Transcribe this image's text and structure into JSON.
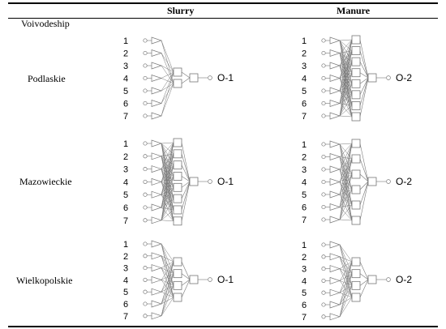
{
  "table": {
    "header": {
      "col_slurry": "Slurry",
      "col_manure": "Manure",
      "row_header": "Voivodeship"
    },
    "rows": [
      {
        "voivodeship": "Podlaskie",
        "slurry": {
          "inputs": [
            "1",
            "2",
            "3",
            "4",
            "5",
            "6",
            "7"
          ],
          "hidden_layers": [
            2,
            1
          ],
          "output": "O-1"
        },
        "manure": {
          "inputs": [
            "1",
            "2",
            "3",
            "4",
            "5",
            "6",
            "7"
          ],
          "hidden_layers": [
            8,
            1
          ],
          "output": "O-2"
        }
      },
      {
        "voivodeship": "Mazowieckie",
        "slurry": {
          "inputs": [
            "1",
            "2",
            "3",
            "4",
            "5",
            "6",
            "7"
          ],
          "hidden_layers": [
            8,
            1
          ],
          "output": "O-1"
        },
        "manure": {
          "inputs": [
            "1",
            "2",
            "3",
            "4",
            "5",
            "6",
            "7"
          ],
          "hidden_layers": [
            6,
            1
          ],
          "output": "O-2"
        }
      },
      {
        "voivodeship": "Wielkopolskie",
        "slurry": {
          "inputs": [
            "1",
            "2",
            "3",
            "4",
            "5",
            "6",
            "7"
          ],
          "hidden_layers": [
            4,
            1
          ],
          "output": "O-1"
        },
        "manure": {
          "inputs": [
            "1",
            "2",
            "3",
            "4",
            "5",
            "6",
            "7"
          ],
          "hidden_layers": [
            4,
            1
          ],
          "output": "O-2"
        }
      }
    ]
  }
}
